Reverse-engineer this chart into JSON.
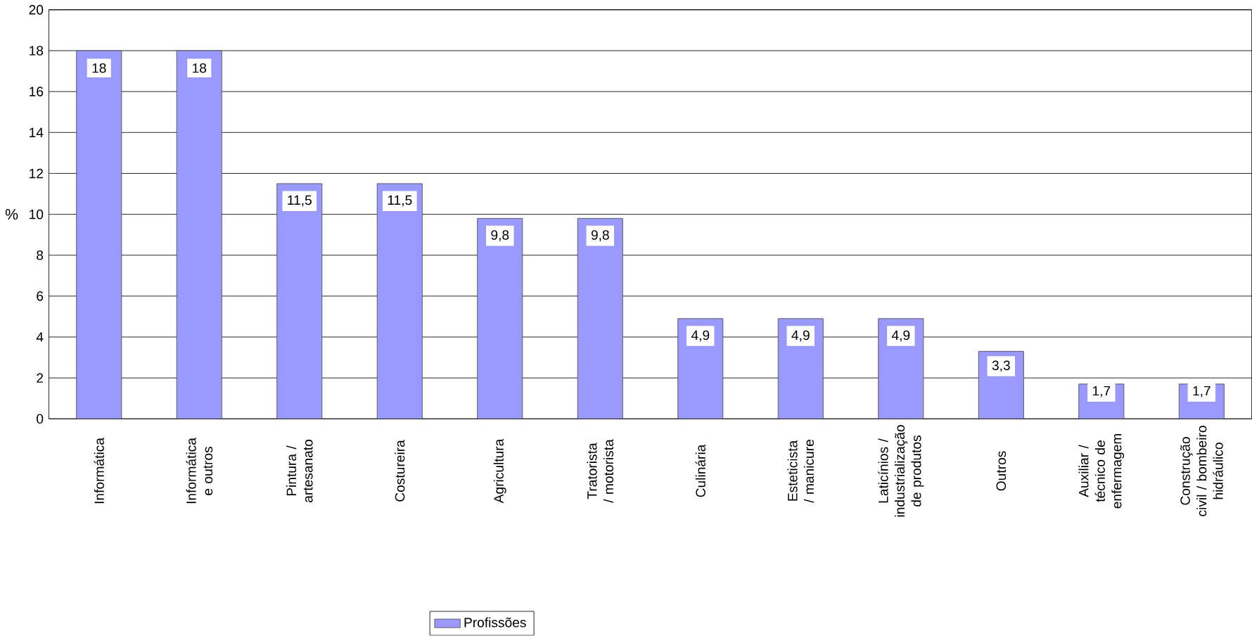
{
  "chart_data": {
    "type": "bar",
    "ylabel": "%",
    "categories": [
      "Informática",
      "Informática e outros",
      "Pintura / artesanato",
      "Costureira",
      "Agricultura",
      "Tratorista / motorista",
      "Culinária",
      "Esteticista / manicure",
      "Laticínios / industrialização de produtos",
      "Outros",
      "Auxiliar / técnico de enfermagem",
      "Construção civil / bombeiro hidráulico"
    ],
    "series": [
      {
        "name": "Profissões",
        "color": "#9999ff",
        "values": [
          18,
          18,
          11.5,
          11.5,
          9.8,
          9.8,
          4.9,
          4.9,
          4.9,
          3.3,
          1.7,
          1.7
        ],
        "value_labels": [
          "18",
          "18",
          "11,5",
          "11,5",
          "9,8",
          "9,8",
          "4,9",
          "4,9",
          "4,9",
          "3,3",
          "1,7",
          "1,7"
        ]
      }
    ],
    "ylim": [
      0,
      20
    ],
    "yticks": [
      0,
      2,
      4,
      6,
      8,
      10,
      12,
      14,
      16,
      18,
      20
    ],
    "grid": "y",
    "legend": "bottom"
  }
}
